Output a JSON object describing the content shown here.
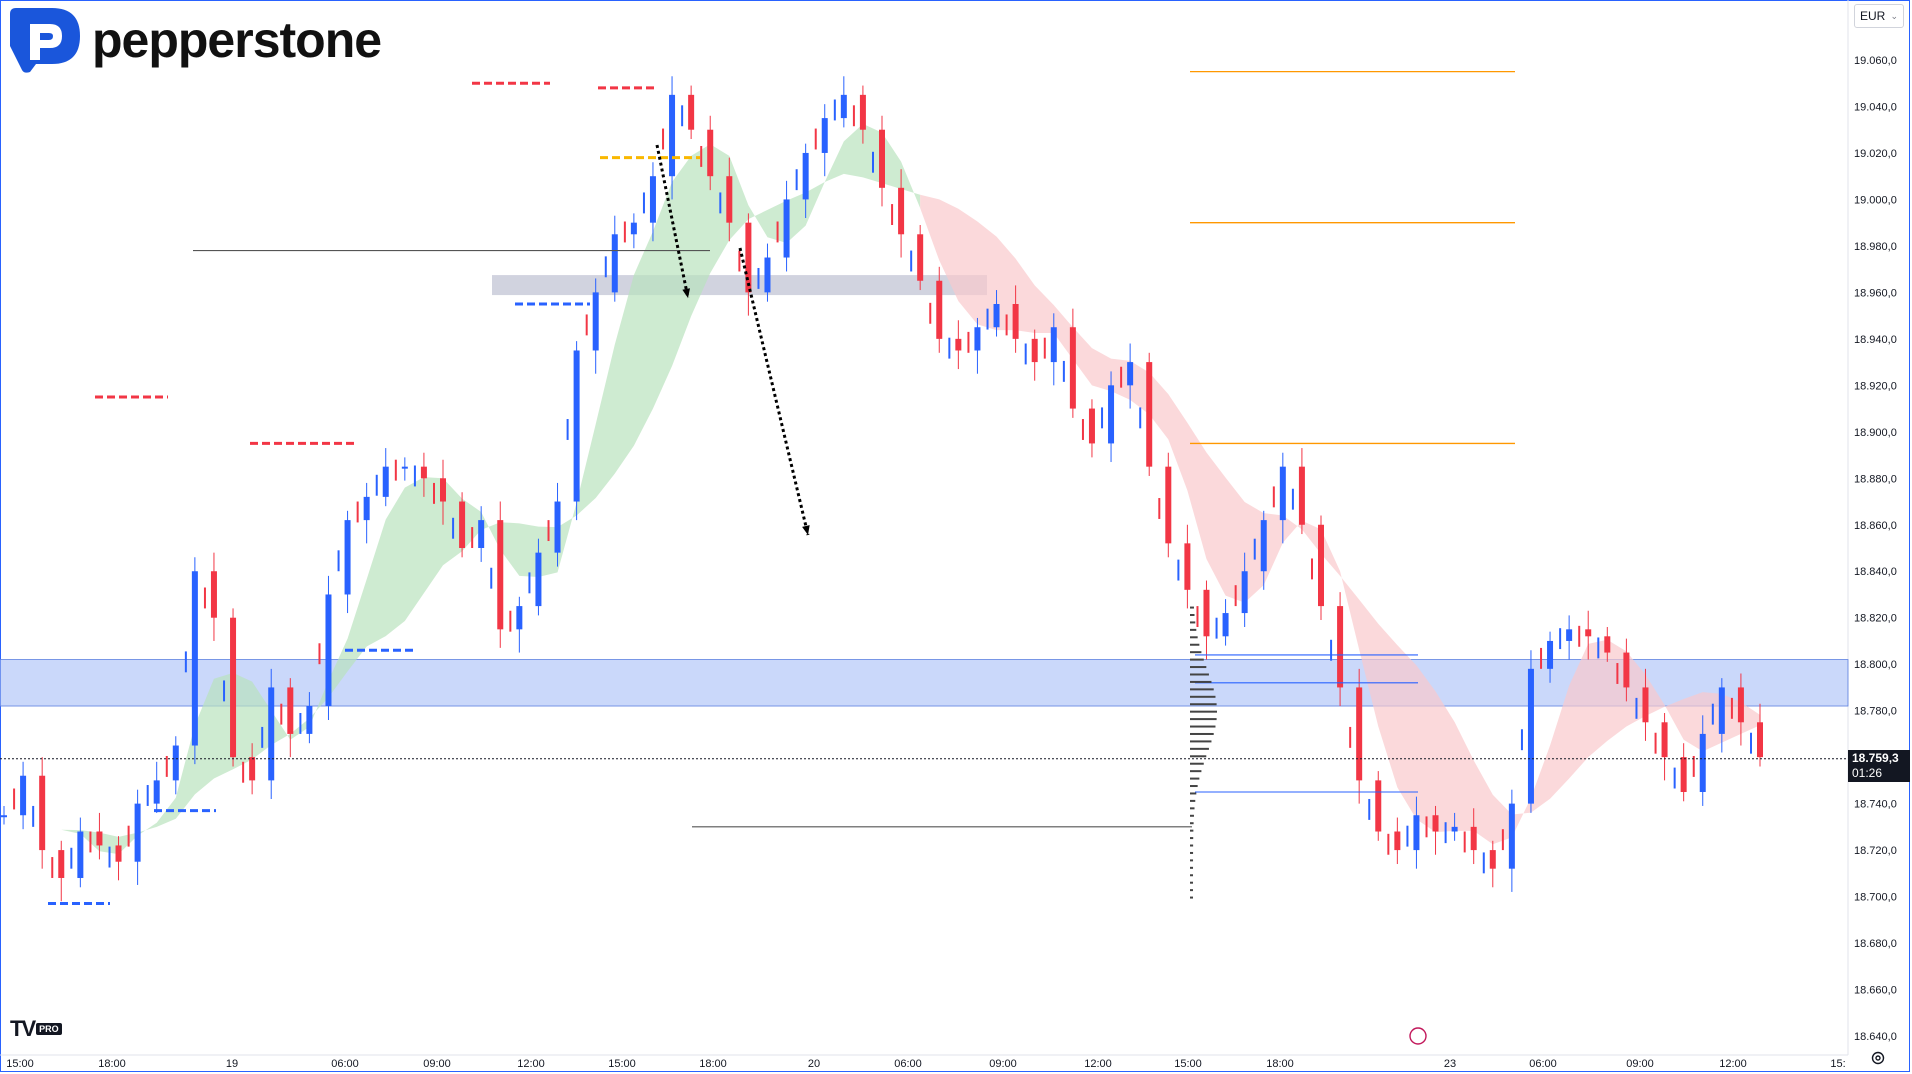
{
  "brand": {
    "name": "pepperstone",
    "mark_color": "#1a56db"
  },
  "currency_selector": {
    "label": "EUR",
    "chevron": "chevron-down-icon"
  },
  "price_axis": {
    "labels": [
      "19.060,0",
      "19.040,0",
      "19.020,0",
      "19.000,0",
      "18.980,0",
      "18.960,0",
      "18.940,0",
      "18.920,0",
      "18.900,0",
      "18.880,0",
      "18.860,0",
      "18.840,0",
      "18.820,0",
      "18.800,0",
      "18.780,0",
      "18.760,0",
      "18.740,0",
      "18.720,0",
      "18.700,0",
      "18.680,0",
      "18.660,0",
      "18.640,0"
    ]
  },
  "time_axis": {
    "labels": [
      "15:00",
      "18:00",
      "19",
      "06:00",
      "09:00",
      "12:00",
      "15:00",
      "18:00",
      "20",
      "06:00",
      "09:00",
      "12:00",
      "15:00",
      "18:00",
      "23",
      "06:00",
      "09:00",
      "12:00",
      "15:"
    ]
  },
  "last_price": {
    "value": "18.759,3",
    "countdown": "01:26"
  },
  "watermark": {
    "text": "TV",
    "badge": "PRO"
  },
  "colors": {
    "up": "#2962ff",
    "down": "#f23645",
    "ribbon_bull": "#b9e3bd",
    "ribbon_bear": "#f9c9cc",
    "zone": "#aec3f7",
    "resistance": "#f23645",
    "support": "#2962ff",
    "fib": "#ff9800"
  },
  "chart_data": {
    "type": "candlestick",
    "instrument_currency": "EUR",
    "y_range": [
      18630,
      19070
    ],
    "x_labels": [
      "15:00",
      "18:00",
      "19",
      "06:00",
      "09:00",
      "12:00",
      "15:00",
      "18:00",
      "20",
      "06:00",
      "09:00",
      "12:00",
      "15:00",
      "18:00",
      "23",
      "06:00",
      "09:00",
      "12:00",
      "15:"
    ],
    "close_path": [
      18735,
      18752,
      18720,
      18708,
      18728,
      18722,
      18715,
      18740,
      18750,
      18765,
      18840,
      18820,
      18760,
      18750,
      18790,
      18770,
      18782,
      18830,
      18862,
      18872,
      18885,
      18885,
      18880,
      18870,
      18850,
      18862,
      18815,
      18825,
      18848,
      18870,
      18935,
      18960,
      18985,
      18990,
      19010,
      19045,
      19030,
      19010,
      18990,
      18960,
      18975,
      19000,
      19020,
      19035,
      19045,
      19030,
      19005,
      18985,
      18965,
      18940,
      18935,
      18945,
      18955,
      18940,
      18930,
      18945,
      18910,
      18895,
      18920,
      18930,
      18885,
      18852,
      18832,
      18812,
      18822,
      18840,
      18862,
      18885,
      18860,
      18825,
      18790,
      18750,
      18728,
      18720,
      18735,
      18728,
      18730,
      18720,
      18712,
      18740,
      18798,
      18810,
      18815,
      18812,
      18805,
      18790,
      18775,
      18760,
      18745,
      18770,
      18790,
      18775,
      18760
    ],
    "annotations": {
      "resistance_levels": [
        18915,
        18895,
        19050,
        19048
      ],
      "support_levels": [
        18697,
        18737,
        18806,
        18955
      ],
      "fib_levels": [
        19055,
        18990,
        18895
      ],
      "zone": [
        18782,
        18802
      ],
      "gray_zone": [
        18957,
        18964
      ],
      "horizontal_lines": [
        18978,
        18730
      ],
      "current_price": 18759.3,
      "arrows": [
        [
          19010,
          18930
        ],
        [
          18960,
          18806
        ]
      ]
    }
  }
}
